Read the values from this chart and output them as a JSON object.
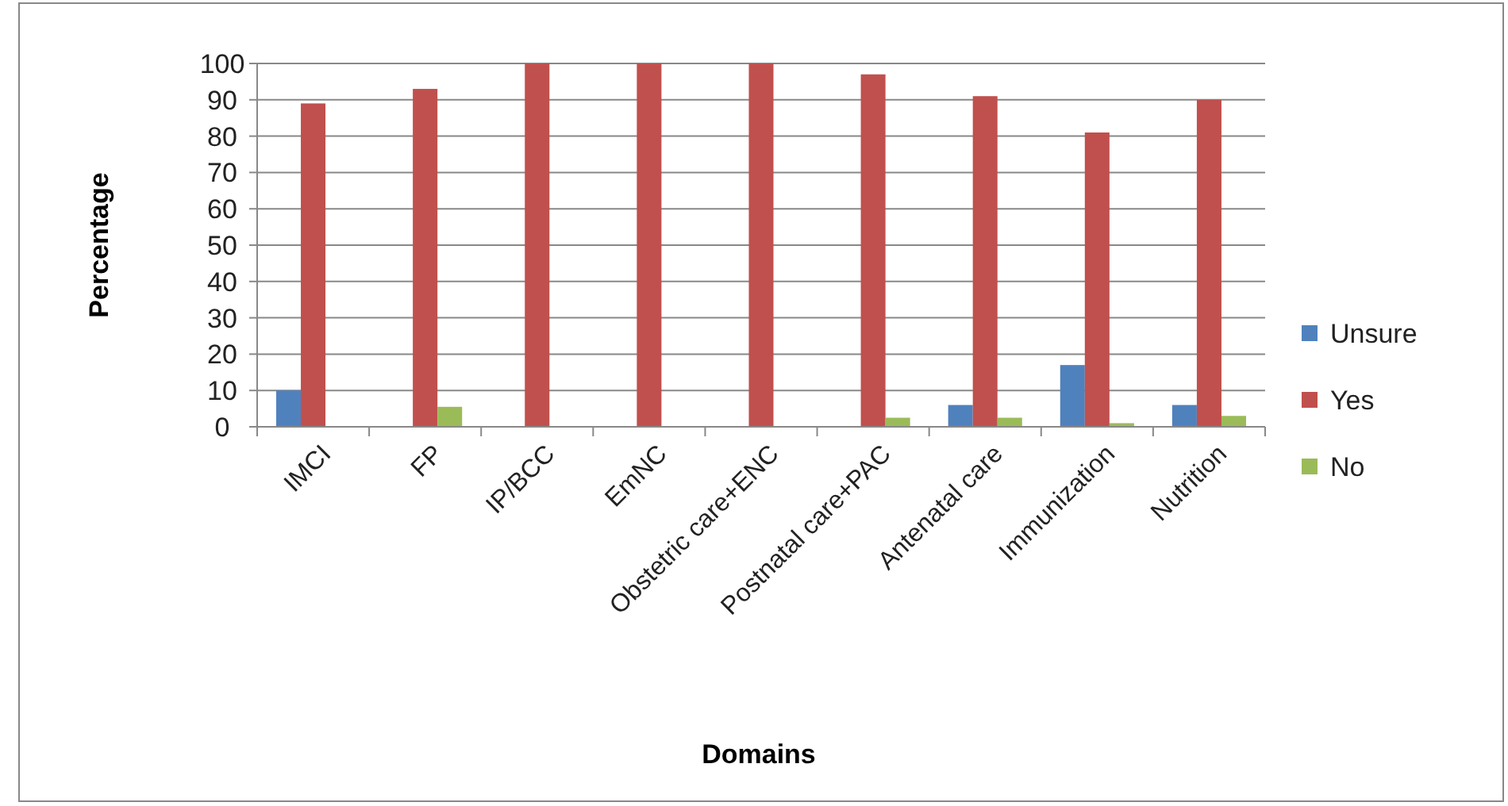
{
  "chart_data": {
    "type": "bar",
    "xlabel": "Domains",
    "ylabel": "Percentage",
    "categories": [
      "IMCI",
      "FP",
      "IP/BCC",
      "EmNC",
      "Obstetric care+ENC",
      "Postnatal care+PAC",
      "Antenatal care",
      "Immunization",
      "Nutrition"
    ],
    "series": [
      {
        "name": "Unsure",
        "color": "#4f81bd",
        "values": [
          10,
          0,
          0,
          0,
          0,
          0,
          6,
          17,
          6
        ]
      },
      {
        "name": "Yes",
        "color": "#c0504d",
        "values": [
          89,
          93,
          100,
          100,
          100,
          97,
          91,
          81,
          90
        ]
      },
      {
        "name": "No",
        "color": "#9bbb59",
        "values": [
          0,
          5.5,
          0,
          0,
          0,
          2.5,
          2.5,
          1,
          3
        ]
      }
    ],
    "ylim": [
      0,
      100
    ],
    "yticks": [
      0,
      10,
      20,
      30,
      40,
      50,
      60,
      70,
      80,
      90,
      100
    ],
    "grid": "y",
    "legend": "right"
  }
}
